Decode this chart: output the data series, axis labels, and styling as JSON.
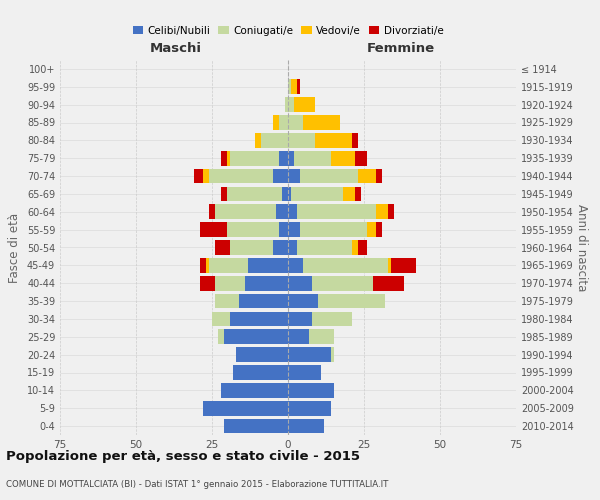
{
  "age_groups": [
    "0-4",
    "5-9",
    "10-14",
    "15-19",
    "20-24",
    "25-29",
    "30-34",
    "35-39",
    "40-44",
    "45-49",
    "50-54",
    "55-59",
    "60-64",
    "65-69",
    "70-74",
    "75-79",
    "80-84",
    "85-89",
    "90-94",
    "95-99",
    "100+"
  ],
  "birth_years": [
    "2010-2014",
    "2005-2009",
    "2000-2004",
    "1995-1999",
    "1990-1994",
    "1985-1989",
    "1980-1984",
    "1975-1979",
    "1970-1974",
    "1965-1969",
    "1960-1964",
    "1955-1959",
    "1950-1954",
    "1945-1949",
    "1940-1944",
    "1935-1939",
    "1930-1934",
    "1925-1929",
    "1920-1924",
    "1915-1919",
    "≤ 1914"
  ],
  "maschi": {
    "celibi": [
      21,
      28,
      22,
      18,
      17,
      21,
      19,
      16,
      14,
      13,
      5,
      3,
      4,
      2,
      5,
      3,
      0,
      0,
      0,
      0,
      0
    ],
    "coniugati": [
      0,
      0,
      0,
      0,
      0,
      2,
      6,
      8,
      10,
      13,
      14,
      17,
      20,
      18,
      21,
      16,
      9,
      3,
      1,
      0,
      0
    ],
    "vedovi": [
      0,
      0,
      0,
      0,
      0,
      0,
      0,
      0,
      0,
      1,
      0,
      0,
      0,
      0,
      2,
      1,
      2,
      2,
      0,
      0,
      0
    ],
    "divorziati": [
      0,
      0,
      0,
      0,
      0,
      0,
      0,
      0,
      5,
      2,
      5,
      9,
      2,
      2,
      3,
      2,
      0,
      0,
      0,
      0,
      0
    ]
  },
  "femmine": {
    "nubili": [
      12,
      14,
      15,
      11,
      14,
      7,
      8,
      10,
      8,
      5,
      3,
      4,
      3,
      1,
      4,
      2,
      0,
      0,
      0,
      0,
      0
    ],
    "coniugate": [
      0,
      0,
      0,
      0,
      1,
      8,
      13,
      22,
      20,
      28,
      18,
      22,
      26,
      17,
      19,
      12,
      9,
      5,
      2,
      1,
      0
    ],
    "vedove": [
      0,
      0,
      0,
      0,
      0,
      0,
      0,
      0,
      0,
      1,
      2,
      3,
      4,
      4,
      6,
      8,
      12,
      12,
      7,
      2,
      0
    ],
    "divorziate": [
      0,
      0,
      0,
      0,
      0,
      0,
      0,
      0,
      10,
      8,
      3,
      2,
      2,
      2,
      2,
      4,
      2,
      0,
      0,
      1,
      0
    ]
  },
  "colors": {
    "celibi": "#4472c4",
    "coniugati": "#c5d9a0",
    "vedovi": "#ffc000",
    "divorziati": "#cc0000"
  },
  "xlim": 75,
  "title": "Popolazione per età, sesso e stato civile - 2015",
  "subtitle": "COMUNE DI MOTTALCIATA (BI) - Dati ISTAT 1° gennaio 2015 - Elaborazione TUTTITALIA.IT",
  "ylabel_left": "Fasce di età",
  "ylabel_right": "Anni di nascita",
  "xlabel_left": "Maschi",
  "xlabel_right": "Femmine",
  "bg_color": "#f0f0f0",
  "grid_color": "#cccccc"
}
